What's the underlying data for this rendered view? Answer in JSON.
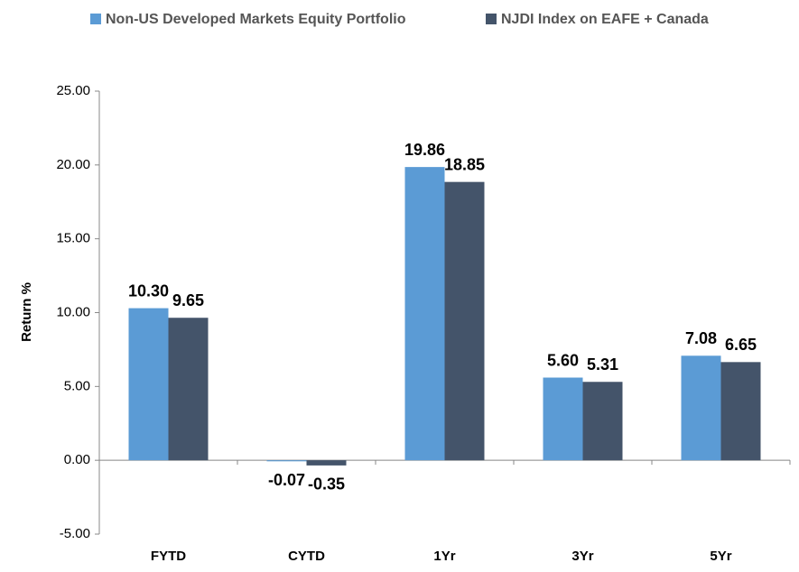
{
  "chart_data": {
    "type": "bar",
    "ylabel": "Return %",
    "categories": [
      "FYTD",
      "CYTD",
      "1Yr",
      "3Yr",
      "5Yr"
    ],
    "series": [
      {
        "name": "Non-US Developed Markets Equity Portfolio",
        "color": "#5b9bd5",
        "values": [
          10.3,
          -0.07,
          19.86,
          5.6,
          7.08
        ],
        "value_labels": [
          "10.30",
          "-0.07",
          "19.86",
          "5.60",
          "7.08"
        ]
      },
      {
        "name": "NJDI Index on EAFE + Canada",
        "color": "#44546a",
        "values": [
          9.65,
          -0.35,
          18.85,
          5.31,
          6.65
        ],
        "value_labels": [
          "9.65",
          "-0.35",
          "18.85",
          "5.31",
          "6.65"
        ]
      }
    ],
    "ylim": [
      -5,
      25
    ],
    "yticks": [
      {
        "value": -5,
        "label": "-5.00"
      },
      {
        "value": 0,
        "label": "0.00"
      },
      {
        "value": 5,
        "label": "5.00"
      },
      {
        "value": 10,
        "label": "10.00"
      },
      {
        "value": 15,
        "label": "15.00"
      },
      {
        "value": 20,
        "label": "20.00"
      },
      {
        "value": 25,
        "label": "25.00"
      }
    ],
    "legend": "top"
  }
}
